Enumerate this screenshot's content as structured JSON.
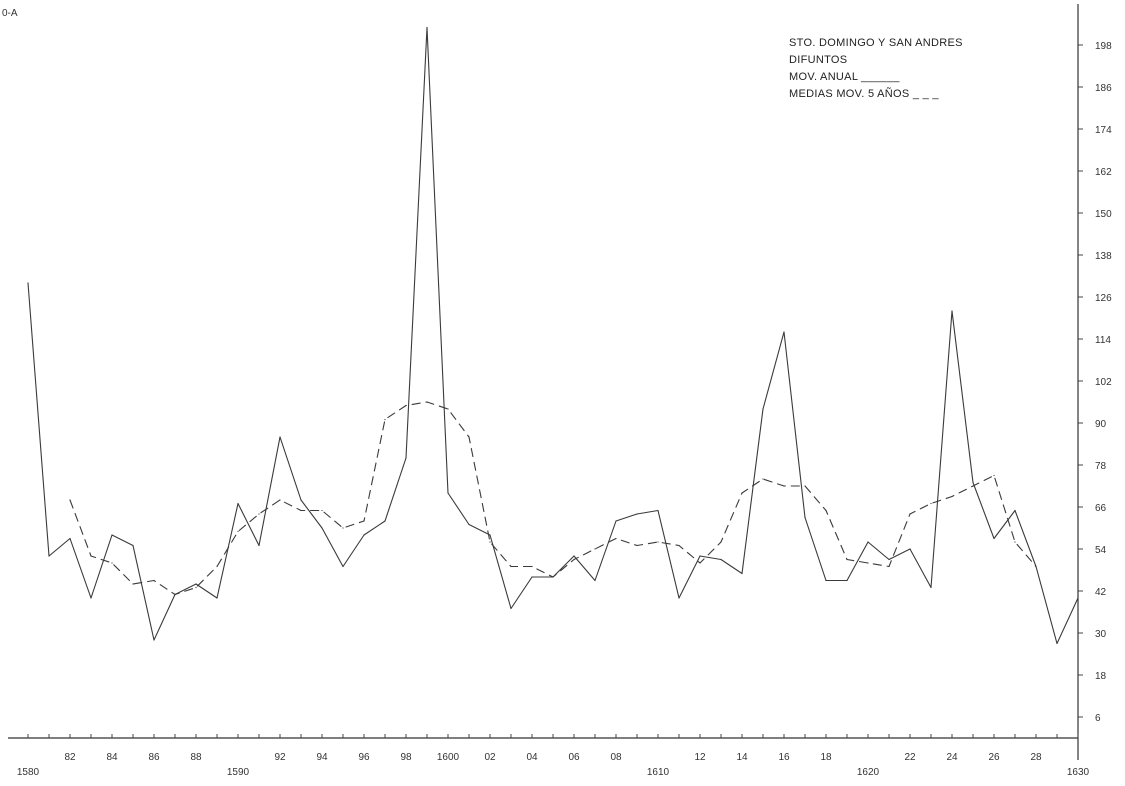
{
  "corner_label": "0-A",
  "legend": {
    "line1": "STO. DOMINGO Y SAN ANDRES",
    "line2": "DIFUNTOS",
    "line3": "MOV. ANUAL ______",
    "line4": "MEDIAS MOV. 5 AÑOS _ _ _"
  },
  "chart_data": {
    "type": "line",
    "title": "STO. DOMINGO Y SAN ANDRES DIFUNTOS",
    "x_tick_labels": [
      {
        "x": 1580,
        "label": "1580",
        "row": 2
      },
      {
        "x": 1582,
        "label": "82",
        "row": 1
      },
      {
        "x": 1584,
        "label": "84",
        "row": 1
      },
      {
        "x": 1586,
        "label": "86",
        "row": 1
      },
      {
        "x": 1588,
        "label": "88",
        "row": 1
      },
      {
        "x": 1590,
        "label": "1590",
        "row": 2
      },
      {
        "x": 1592,
        "label": "92",
        "row": 1
      },
      {
        "x": 1594,
        "label": "94",
        "row": 1
      },
      {
        "x": 1596,
        "label": "96",
        "row": 1
      },
      {
        "x": 1598,
        "label": "98",
        "row": 1
      },
      {
        "x": 1600,
        "label": "1600",
        "row": 1
      },
      {
        "x": 1602,
        "label": "02",
        "row": 1
      },
      {
        "x": 1604,
        "label": "04",
        "row": 1
      },
      {
        "x": 1606,
        "label": "06",
        "row": 1
      },
      {
        "x": 1608,
        "label": "08",
        "row": 1
      },
      {
        "x": 1610,
        "label": "1610",
        "row": 2
      },
      {
        "x": 1612,
        "label": "12",
        "row": 1
      },
      {
        "x": 1614,
        "label": "14",
        "row": 1
      },
      {
        "x": 1616,
        "label": "16",
        "row": 1
      },
      {
        "x": 1618,
        "label": "18",
        "row": 1
      },
      {
        "x": 1620,
        "label": "1620",
        "row": 2
      },
      {
        "x": 1622,
        "label": "22",
        "row": 1
      },
      {
        "x": 1624,
        "label": "24",
        "row": 1
      },
      {
        "x": 1626,
        "label": "26",
        "row": 1
      },
      {
        "x": 1628,
        "label": "28",
        "row": 1
      },
      {
        "x": 1630,
        "label": "1630",
        "row": 2
      }
    ],
    "y_ticks": [
      6,
      18,
      30,
      42,
      54,
      66,
      78,
      90,
      102,
      114,
      126,
      138,
      150,
      162,
      174,
      186,
      198
    ],
    "xlim": [
      1580,
      1630
    ],
    "ylim": [
      0,
      208
    ],
    "grid": false,
    "legend_position": "top-right",
    "series": [
      {
        "name": "MOV. ANUAL",
        "style": "solid",
        "points": [
          [
            1580,
            130
          ],
          [
            1581,
            52
          ],
          [
            1582,
            57
          ],
          [
            1583,
            40
          ],
          [
            1584,
            58
          ],
          [
            1585,
            55
          ],
          [
            1586,
            28
          ],
          [
            1587,
            41
          ],
          [
            1588,
            44
          ],
          [
            1589,
            40
          ],
          [
            1590,
            67
          ],
          [
            1591,
            55
          ],
          [
            1592,
            86
          ],
          [
            1593,
            68
          ],
          [
            1594,
            60
          ],
          [
            1595,
            49
          ],
          [
            1596,
            58
          ],
          [
            1597,
            62
          ],
          [
            1598,
            80
          ],
          [
            1599,
            203
          ],
          [
            1600,
            70
          ],
          [
            1601,
            61
          ],
          [
            1602,
            58
          ],
          [
            1603,
            37
          ],
          [
            1604,
            46
          ],
          [
            1605,
            46
          ],
          [
            1606,
            52
          ],
          [
            1607,
            45
          ],
          [
            1608,
            62
          ],
          [
            1609,
            64
          ],
          [
            1610,
            65
          ],
          [
            1611,
            40
          ],
          [
            1612,
            52
          ],
          [
            1613,
            51
          ],
          [
            1614,
            47
          ],
          [
            1615,
            94
          ],
          [
            1616,
            116
          ],
          [
            1617,
            63
          ],
          [
            1618,
            45
          ],
          [
            1619,
            45
          ],
          [
            1620,
            56
          ],
          [
            1621,
            51
          ],
          [
            1622,
            54
          ],
          [
            1623,
            43
          ],
          [
            1624,
            122
          ],
          [
            1625,
            73
          ],
          [
            1626,
            57
          ],
          [
            1627,
            65
          ],
          [
            1628,
            49
          ],
          [
            1629,
            27
          ],
          [
            1630,
            40
          ]
        ]
      },
      {
        "name": "MEDIAS MOV. 5 AÑOS",
        "style": "dashed",
        "points": [
          [
            1582,
            68
          ],
          [
            1583,
            52
          ],
          [
            1584,
            50
          ],
          [
            1585,
            44
          ],
          [
            1586,
            45
          ],
          [
            1587,
            41
          ],
          [
            1588,
            43
          ],
          [
            1589,
            49
          ],
          [
            1590,
            59
          ],
          [
            1591,
            64
          ],
          [
            1592,
            68
          ],
          [
            1593,
            65
          ],
          [
            1594,
            65
          ],
          [
            1595,
            60
          ],
          [
            1596,
            62
          ],
          [
            1597,
            91
          ],
          [
            1598,
            95
          ],
          [
            1599,
            96
          ],
          [
            1600,
            94
          ],
          [
            1601,
            86
          ],
          [
            1602,
            56
          ],
          [
            1603,
            49
          ],
          [
            1604,
            49
          ],
          [
            1605,
            46
          ],
          [
            1606,
            51
          ],
          [
            1607,
            54
          ],
          [
            1608,
            57
          ],
          [
            1609,
            55
          ],
          [
            1610,
            56
          ],
          [
            1611,
            55
          ],
          [
            1612,
            50
          ],
          [
            1613,
            56
          ],
          [
            1614,
            70
          ],
          [
            1615,
            74
          ],
          [
            1616,
            72
          ],
          [
            1617,
            72
          ],
          [
            1618,
            65
          ],
          [
            1619,
            51
          ],
          [
            1620,
            50
          ],
          [
            1621,
            49
          ],
          [
            1622,
            64
          ],
          [
            1623,
            67
          ],
          [
            1624,
            69
          ],
          [
            1625,
            72
          ],
          [
            1626,
            75
          ],
          [
            1627,
            56
          ],
          [
            1628,
            49
          ]
        ]
      }
    ]
  }
}
